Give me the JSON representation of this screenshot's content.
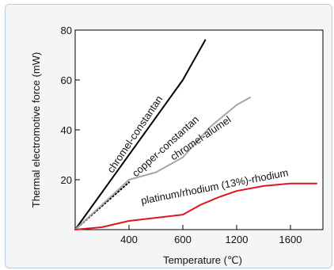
{
  "chart_data": {
    "type": "line",
    "xlabel": "Temperature (℃)",
    "ylabel": "Thermal electromotive force (mW)",
    "x_ticks": [
      "400",
      "600",
      "1200",
      "1600"
    ],
    "y_ticks": [
      "20",
      "40",
      "60",
      "80"
    ],
    "ylim": [
      0,
      80
    ],
    "grid": false,
    "series": [
      {
        "name": "chromel-constantan",
        "color": "#000000",
        "style": "solid",
        "x": [
          0,
          600,
          850
        ],
        "y": [
          0,
          60,
          76
        ]
      },
      {
        "name": "copper-constantan",
        "color": "#000000",
        "style": "dotted",
        "x": [
          0,
          400
        ],
        "y": [
          0,
          19
        ]
      },
      {
        "name": "chromel-alumel",
        "color": "#a6a6a6",
        "style": "solid",
        "x": [
          0,
          400,
          500,
          600,
          700,
          800,
          900,
          1000,
          1100,
          1200,
          1300
        ],
        "y": [
          0,
          20,
          23,
          29,
          33,
          37,
          41,
          44,
          47,
          50,
          53
        ]
      },
      {
        "name": "platinum/rhodium (13%)-rhodium",
        "color": "#e0151f",
        "style": "solid",
        "x": [
          0,
          200,
          400,
          600,
          800,
          1000,
          1200,
          1400,
          1600,
          1700
        ],
        "y": [
          0,
          1,
          3.5,
          6,
          10,
          13,
          15.5,
          17.5,
          18.5,
          18.5
        ]
      }
    ]
  }
}
